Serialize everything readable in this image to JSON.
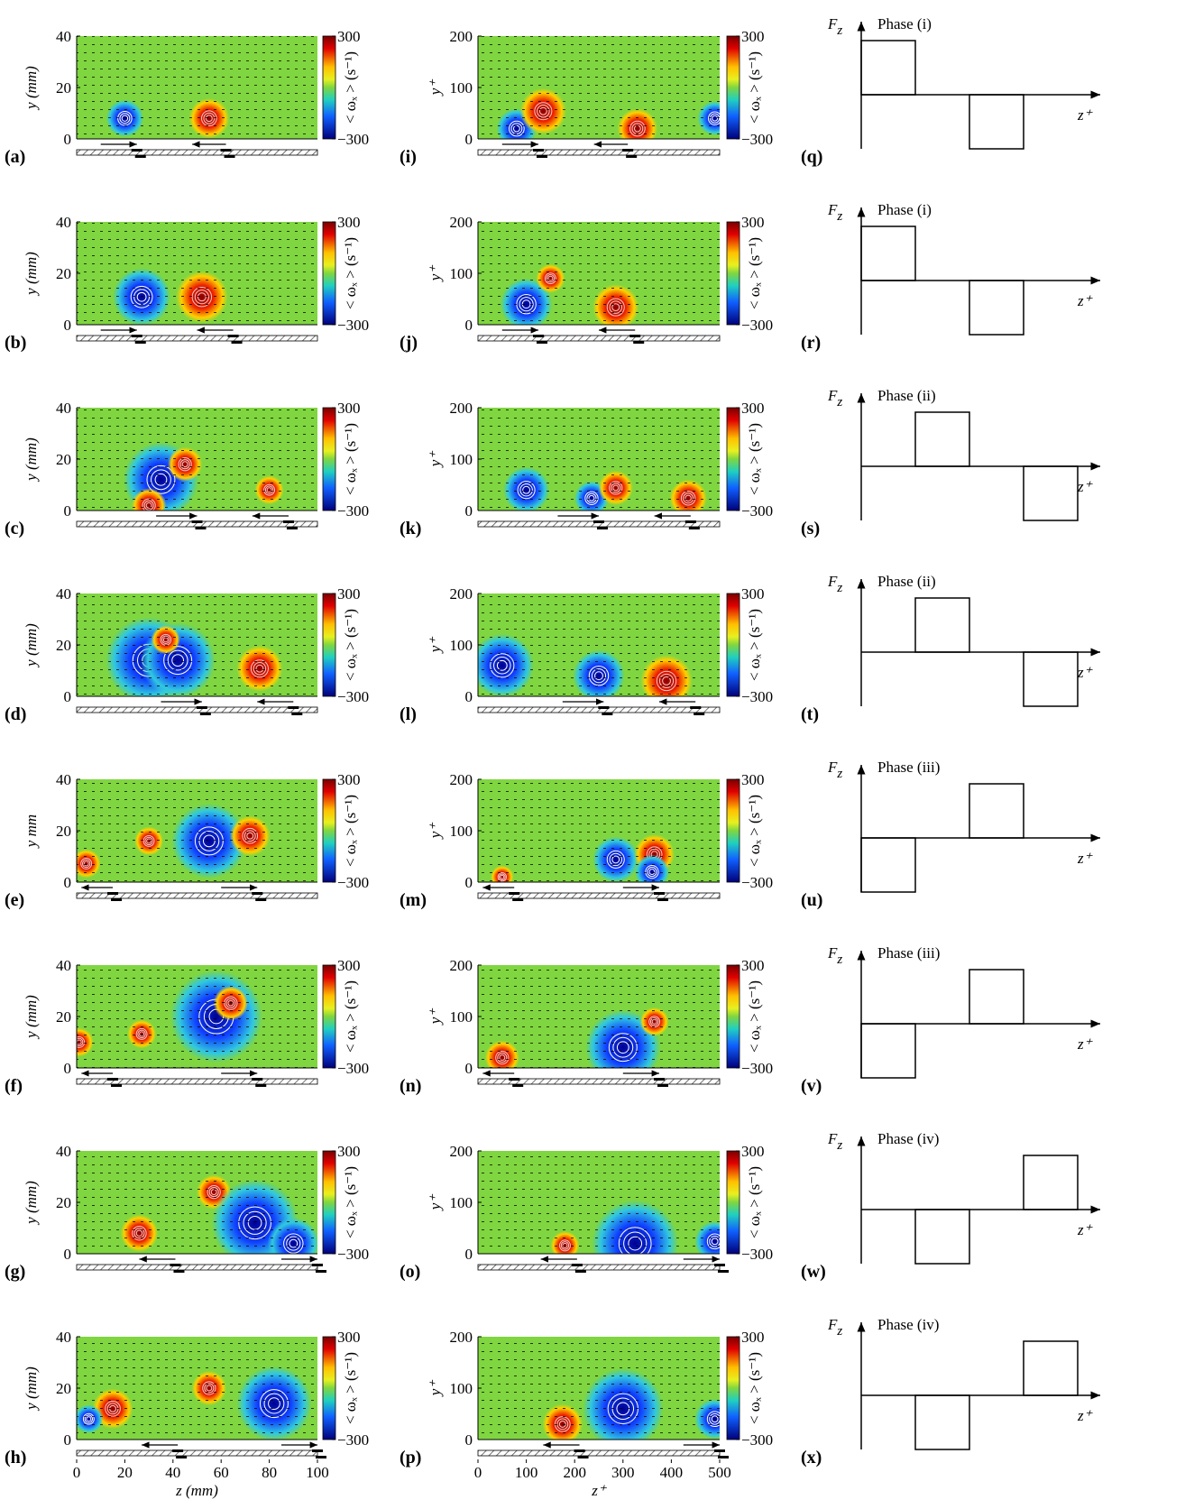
{
  "rows": [
    {
      "left": {
        "label": "(a)",
        "ylabel": "y (mm)"
      },
      "middle": {
        "label": "(i)"
      },
      "right": {
        "label": "(q)",
        "phase": "Phase (i)"
      }
    },
    {
      "left": {
        "label": "(b)",
        "ylabel": "y (mm)"
      },
      "middle": {
        "label": "(j)"
      },
      "right": {
        "label": "(r)",
        "phase": "Phase (i)"
      }
    },
    {
      "left": {
        "label": "(c)",
        "ylabel": "y (mm)"
      },
      "middle": {
        "label": "(k)"
      },
      "right": {
        "label": "(s)",
        "phase": "Phase (ii)"
      }
    },
    {
      "left": {
        "label": "(d)",
        "ylabel": "y (mm)"
      },
      "middle": {
        "label": "(l)"
      },
      "right": {
        "label": "(t)",
        "phase": "Phase (ii)"
      }
    },
    {
      "left": {
        "label": "(e)",
        "ylabel": "y  mm"
      },
      "middle": {
        "label": "(m)"
      },
      "right": {
        "label": "(u)",
        "phase": "Phase (iii)"
      }
    },
    {
      "left": {
        "label": "(f)",
        "ylabel": "y (mm)"
      },
      "middle": {
        "label": "(n)"
      },
      "right": {
        "label": "(v)",
        "phase": "Phase (iii)"
      }
    },
    {
      "left": {
        "label": "(g)",
        "ylabel": "y (mm)"
      },
      "middle": {
        "label": "(o)"
      },
      "right": {
        "label": "(w)",
        "phase": "Phase (iv)"
      }
    },
    {
      "left": {
        "label": "(h)",
        "ylabel": "y (mm)"
      },
      "middle": {
        "label": "(p)"
      },
      "right": {
        "label": "(x)",
        "phase": "Phase (iv)"
      }
    }
  ],
  "left_axes": {
    "ylim": [
      0,
      40
    ],
    "yticks": [
      0,
      20,
      40
    ],
    "xlim": [
      0,
      100
    ],
    "xticks": [
      0,
      20,
      40,
      60,
      80,
      100
    ],
    "xlabel": "z (mm)"
  },
  "middle_axes": {
    "ylabel": "y⁺",
    "ylim": [
      0,
      200
    ],
    "yticks": [
      0,
      100,
      200
    ],
    "xlim": [
      0,
      500
    ],
    "xticks": [
      0,
      100,
      200,
      300,
      400,
      500
    ],
    "xlabel": "z⁺"
  },
  "colorbar": {
    "label": "< ωₓ > (s⁻¹)",
    "lim": [
      -300,
      300
    ],
    "ticks": [
      300,
      {
        "value": -300,
        "label": "−300"
      }
    ]
  },
  "force": {
    "ylabel": {
      "symbol": "F",
      "subscript": "z"
    },
    "xlabel": "z⁺"
  }
}
